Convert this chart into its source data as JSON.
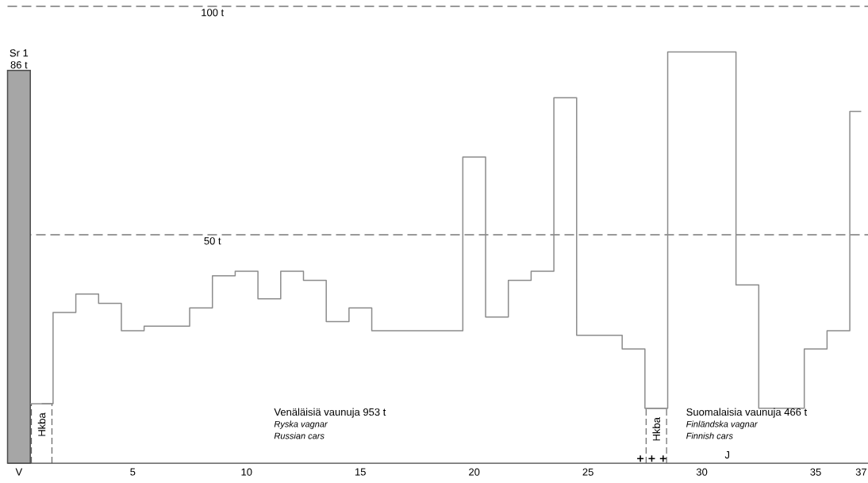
{
  "chart_data": {
    "type": "bar",
    "series": [
      {
        "color": "#a6a6a6",
        "x": [
          0
        ],
        "values": [
          86
        ],
        "value_labels": [
          "86 t"
        ]
      },
      {
        "type": "step",
        "color": "#8c8c8c",
        "x": [
          1,
          2,
          3,
          4,
          5,
          6,
          7,
          8,
          9,
          10,
          11,
          12,
          13,
          14,
          15,
          16,
          17,
          18,
          19,
          20,
          21,
          22,
          23,
          24,
          25,
          26,
          27,
          28,
          29,
          30,
          31,
          32,
          33,
          34,
          35,
          36,
          37
        ],
        "values": [
          13,
          33,
          37,
          35,
          29,
          30,
          30,
          34,
          41,
          42,
          36,
          42,
          40,
          31,
          34,
          29,
          29,
          29,
          29,
          67,
          32,
          40,
          42,
          80,
          28,
          28,
          25,
          12,
          90,
          90,
          90,
          39,
          12,
          12,
          25,
          29,
          77
        ]
      },
      {
        "type": "scatter",
        "marker": "cross",
        "color": "#000000",
        "x": [
          27.3,
          27.8,
          28.3
        ],
        "values": [
          1,
          1,
          1
        ]
      }
    ],
    "xlim": [
      -0.5,
      37.3
    ],
    "ylim": [
      0,
      100
    ],
    "xticks": [
      {
        "value": 0,
        "label": "V"
      },
      5,
      10,
      15,
      20,
      25,
      30,
      35,
      37
    ],
    "tick_labels": "x",
    "ref_lines": [
      {
        "axis": "y",
        "value": 100,
        "label": "100 t",
        "color": "#999999",
        "line_style": "dashed"
      },
      {
        "axis": "y",
        "value": 50,
        "label": "50 t",
        "color": "#999999",
        "line_style": "dashed"
      }
    ],
    "annotations": [
      {
        "text": "Sr 1",
        "x": 0,
        "y": 86
      },
      {
        "text": "Hkba",
        "x": 1,
        "y": 13
      },
      {
        "text": "Hkba",
        "x": 28,
        "y": 12
      },
      "Venäläisiä vaunuja 953 t",
      "Ryska vagnar",
      "Russian cars",
      "Suomalaisia vaunuja 466 t",
      "Finländska vagnar",
      "Finnish cars",
      "J"
    ]
  }
}
